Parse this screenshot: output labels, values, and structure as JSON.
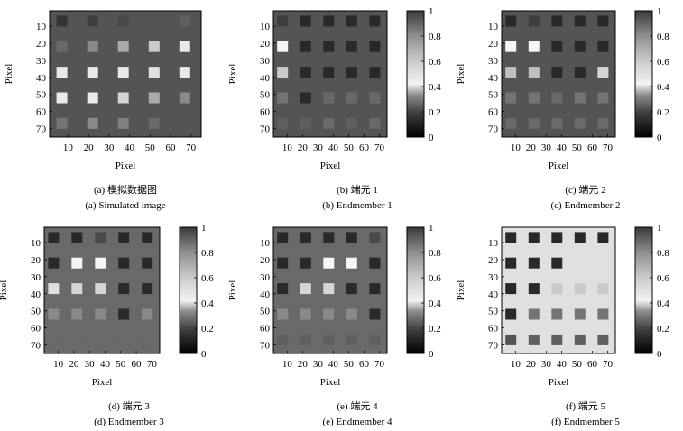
{
  "chart_data": [
    {
      "type": "heatmap",
      "panel": "a",
      "caption_zh": "(a) 模拟数据图",
      "caption_en": "(a) Simulated image",
      "xlabel": "Pixel",
      "ylabel": "Pixel",
      "xticks": [
        "10",
        "20",
        "30",
        "40",
        "50",
        "60",
        "70"
      ],
      "yticks": [
        "10",
        "20",
        "30",
        "40",
        "50",
        "60",
        "70"
      ],
      "xlim": [
        1,
        75
      ],
      "ylim": [
        1,
        75
      ],
      "colorbar": false,
      "background": 0.25,
      "square_rows": [
        7,
        22,
        37,
        52,
        67
      ],
      "square_cols": [
        7,
        22,
        37,
        52,
        67
      ],
      "values": [
        [
          0.1,
          0.15,
          0.2,
          0.25,
          0.3
        ],
        [
          0.35,
          0.5,
          0.65,
          0.8,
          0.95
        ],
        [
          0.95,
          0.95,
          0.95,
          0.9,
          0.95
        ],
        [
          0.95,
          0.95,
          0.85,
          0.65,
          0.5
        ],
        [
          0.4,
          0.5,
          0.45,
          0.35,
          0.25
        ]
      ]
    },
    {
      "type": "heatmap",
      "panel": "b",
      "caption_zh": "(b) 端元 1",
      "caption_en": "(b) Endmember 1",
      "xlabel": "Pixel",
      "ylabel": "Pixel",
      "xticks": [
        "10",
        "20",
        "30",
        "40",
        "50",
        "60",
        "70"
      ],
      "yticks": [
        "10",
        "20",
        "30",
        "40",
        "50",
        "60",
        "70"
      ],
      "xlim": [
        1,
        75
      ],
      "ylim": [
        1,
        75
      ],
      "colorbar": true,
      "colorbar_ticks": [
        "0",
        "0.2",
        "0.4",
        "0.6",
        "0.8",
        "1"
      ],
      "background": 0.25,
      "square_rows": [
        7,
        22,
        37,
        52,
        67
      ],
      "square_cols": [
        7,
        22,
        37,
        52,
        67
      ],
      "values": [
        [
          0.15,
          0.05,
          0.05,
          0.05,
          0.05
        ],
        [
          1.0,
          0.05,
          0.05,
          0.05,
          0.05
        ],
        [
          0.8,
          0.05,
          0.05,
          0.05,
          0.05
        ],
        [
          0.4,
          0.05,
          0.35,
          0.35,
          0.35
        ],
        [
          0.3,
          0.3,
          0.35,
          0.3,
          0.35
        ]
      ]
    },
    {
      "type": "heatmap",
      "panel": "c",
      "caption_zh": "(c) 端元 2",
      "caption_en": "(c) Endmember 2",
      "xlabel": "Pixel",
      "ylabel": "Pixel",
      "xticks": [
        "10",
        "20",
        "30",
        "40",
        "50",
        "60",
        "70"
      ],
      "yticks": [
        "10",
        "20",
        "30",
        "40",
        "50",
        "60",
        "70"
      ],
      "xlim": [
        1,
        75
      ],
      "ylim": [
        1,
        75
      ],
      "colorbar": true,
      "colorbar_ticks": [
        "0",
        "0.2",
        "0.4",
        "0.6",
        "0.8",
        "1"
      ],
      "background": 0.25,
      "square_rows": [
        7,
        22,
        37,
        52,
        67
      ],
      "square_cols": [
        7,
        22,
        37,
        52,
        67
      ],
      "values": [
        [
          0.05,
          0.15,
          0.05,
          0.05,
          0.05
        ],
        [
          1.0,
          1.0,
          0.05,
          0.05,
          0.05
        ],
        [
          0.75,
          0.75,
          0.05,
          0.05,
          0.85
        ],
        [
          0.4,
          0.4,
          0.35,
          0.4,
          0.4
        ],
        [
          0.35,
          0.35,
          0.35,
          0.35,
          0.35
        ]
      ]
    },
    {
      "type": "heatmap",
      "panel": "d",
      "caption_zh": "(d) 端元 3",
      "caption_en": "(d) Endmember 3",
      "xlabel": "Pixel",
      "ylabel": "Pixel",
      "xticks": [
        "10",
        "20",
        "30",
        "40",
        "50",
        "60",
        "70"
      ],
      "yticks": [
        "10",
        "20",
        "30",
        "40",
        "50",
        "60",
        "70"
      ],
      "xlim": [
        1,
        75
      ],
      "ylim": [
        1,
        75
      ],
      "colorbar": true,
      "colorbar_ticks": [
        "0",
        "0.2",
        "0.4",
        "0.6",
        "0.8",
        "1"
      ],
      "background": 0.35,
      "square_rows": [
        7,
        22,
        37,
        52,
        67
      ],
      "square_cols": [
        7,
        22,
        37,
        52,
        67
      ],
      "values": [
        [
          0.05,
          0.05,
          0.2,
          0.05,
          0.05
        ],
        [
          0.05,
          1.0,
          1.0,
          0.05,
          0.05
        ],
        [
          0.9,
          0.85,
          0.85,
          0.05,
          0.05
        ],
        [
          0.5,
          0.5,
          0.5,
          0.05,
          0.5
        ],
        [
          0.35,
          0.35,
          0.35,
          0.35,
          0.35
        ]
      ]
    },
    {
      "type": "heatmap",
      "panel": "e",
      "caption_zh": "(e) 端元 4",
      "caption_en": "(e) Endmember 4",
      "xlabel": "Pixel",
      "ylabel": "Pixel",
      "xticks": [
        "10",
        "20",
        "30",
        "40",
        "50",
        "60",
        "70"
      ],
      "yticks": [
        "10",
        "20",
        "30",
        "40",
        "50",
        "60",
        "70"
      ],
      "xlim": [
        1,
        75
      ],
      "ylim": [
        1,
        75
      ],
      "colorbar": true,
      "colorbar_ticks": [
        "0",
        "0.2",
        "0.4",
        "0.6",
        "0.8",
        "1"
      ],
      "background": 0.35,
      "square_rows": [
        7,
        22,
        37,
        52,
        67
      ],
      "square_cols": [
        7,
        22,
        37,
        52,
        67
      ],
      "values": [
        [
          0.05,
          0.05,
          0.05,
          0.05,
          0.2
        ],
        [
          0.05,
          0.05,
          1.0,
          1.0,
          0.05
        ],
        [
          0.05,
          0.85,
          0.85,
          0.05,
          0.05
        ],
        [
          0.5,
          0.5,
          0.5,
          0.5,
          0.05
        ],
        [
          0.3,
          0.3,
          0.3,
          0.3,
          0.3
        ]
      ]
    },
    {
      "type": "heatmap",
      "panel": "f",
      "caption_zh": "(f) 端元 5",
      "caption_en": "(f) Endmember 5",
      "xlabel": "Pixel",
      "ylabel": "Pixel",
      "xticks": [
        "10",
        "20",
        "30",
        "40",
        "50",
        "60",
        "70"
      ],
      "yticks": [
        "10",
        "20",
        "30",
        "40",
        "50",
        "60",
        "70"
      ],
      "xlim": [
        1,
        75
      ],
      "ylim": [
        1,
        75
      ],
      "colorbar": true,
      "colorbar_ticks": [
        "0",
        "0.2",
        "0.4",
        "0.6",
        "0.8",
        "1"
      ],
      "background": 0.9,
      "square_rows": [
        7,
        22,
        37,
        52,
        67
      ],
      "square_cols": [
        7,
        22,
        37,
        52,
        67
      ],
      "values": [
        [
          0.05,
          0.05,
          0.05,
          0.05,
          0.05
        ],
        [
          0.05,
          0.05,
          0.05,
          0.9,
          0.9
        ],
        [
          0.05,
          0.05,
          0.8,
          0.8,
          0.8
        ],
        [
          0.05,
          0.4,
          0.4,
          0.4,
          0.4
        ],
        [
          0.25,
          0.3,
          0.3,
          0.3,
          0.3
        ]
      ]
    }
  ]
}
